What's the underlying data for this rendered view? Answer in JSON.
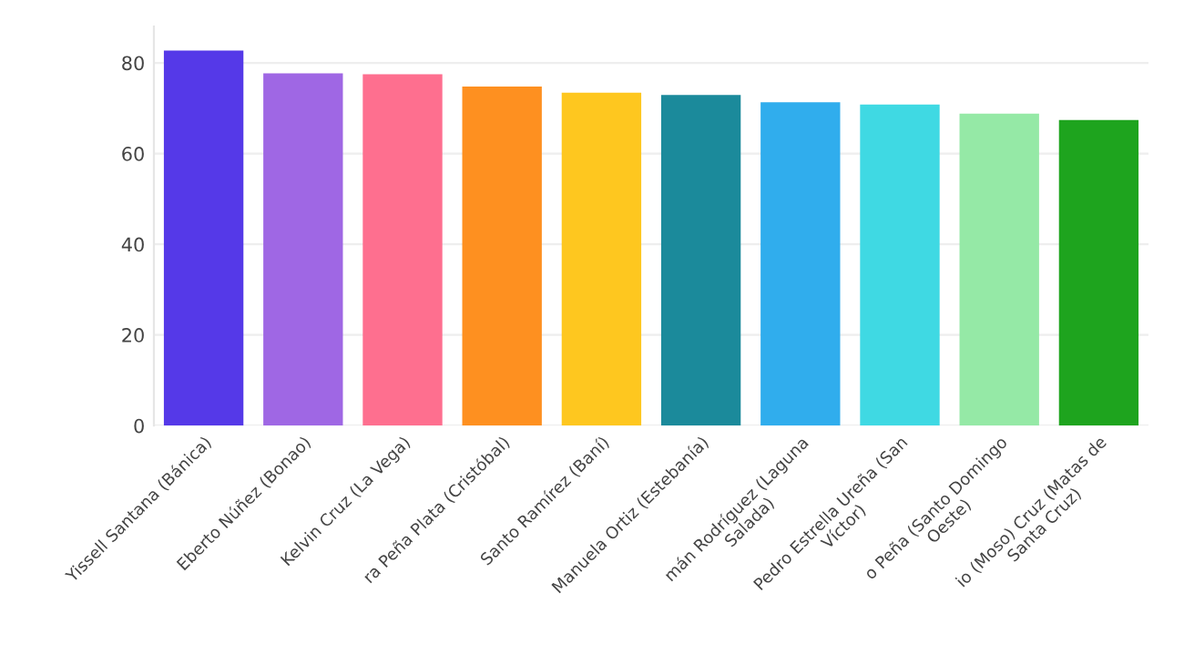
{
  "chart_data": {
    "type": "bar",
    "categories": [
      "Yissell Santana (Bánica)",
      "Eberto Núñez (Bonao)",
      "Kelvin Cruz (La Vega)",
      "ra Peña Plata (Cristóbal)",
      "Santo Ramírez (Baní)",
      "Manuela Ortiz (Estebanía)",
      "mán Rodríguez (Laguna\nSalada)",
      "Pedro Estrella Ureña (San\nVíctor)",
      "o Peña (Santo Domingo\nOeste)",
      "io (Moso) Cruz (Matas de\nSanta Cruz)"
    ],
    "values": [
      82.7,
      77.7,
      77.5,
      74.8,
      73.4,
      72.9,
      71.3,
      70.8,
      68.8,
      67.4
    ],
    "colors": [
      "#5539e8",
      "#9f67e4",
      "#fe6f8f",
      "#fe9020",
      "#fec71f",
      "#1b8a9b",
      "#30aded",
      "#3fd9e3",
      "#95e9a6",
      "#1ea41e"
    ],
    "ylim": [
      0,
      88
    ],
    "yticks": [
      0,
      20,
      40,
      60,
      80
    ],
    "grid": "y"
  }
}
